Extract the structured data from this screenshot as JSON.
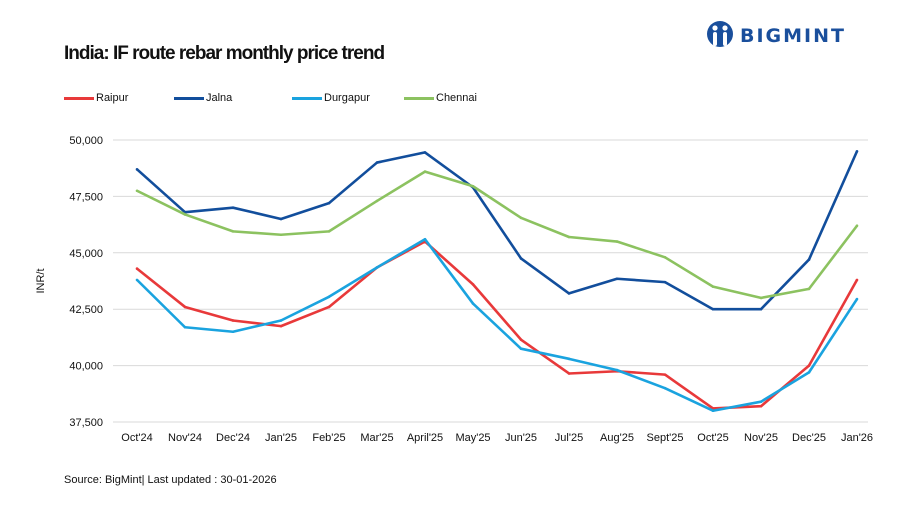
{
  "logo": {
    "text": "BIGMINT",
    "color": "#1a4f9c"
  },
  "source": "Source: BigMint| Last updated : 30-01-2026",
  "chart_data": {
    "type": "line",
    "title": "India: IF route rebar monthly price trend",
    "xlabel": "",
    "ylabel": "INR/t",
    "ylim": [
      37500,
      50000
    ],
    "yticks": [
      37500,
      40000,
      42500,
      45000,
      47500,
      50000
    ],
    "ytick_labels": [
      "37,500",
      "40,000",
      "42,500",
      "45,000",
      "47,500",
      "50,000"
    ],
    "grid": true,
    "legend_position": "top-left",
    "categories": [
      "Oct'24",
      "Nov'24",
      "Dec'24",
      "Jan'25",
      "Feb'25",
      "Mar'25",
      "April'25",
      "May'25",
      "Jun'25",
      "Jul'25",
      "Aug'25",
      "Sept'25",
      "Oct'25",
      "Nov'25",
      "Dec'25",
      "Jan'26"
    ],
    "series": [
      {
        "name": "Raipur",
        "color": "#e8393a",
        "values": [
          44300,
          42600,
          42000,
          41750,
          42600,
          44350,
          45500,
          43600,
          41150,
          39650,
          39750,
          39600,
          38100,
          38200,
          40000,
          43800
        ]
      },
      {
        "name": "Jalna",
        "color": "#124e9c",
        "values": [
          48700,
          46800,
          47000,
          46500,
          47200,
          49000,
          49450,
          47900,
          44750,
          43200,
          43850,
          43700,
          42500,
          42500,
          44700,
          49500
        ]
      },
      {
        "name": "Durgapur",
        "color": "#1aa3df",
        "values": [
          43800,
          41700,
          41500,
          42000,
          43050,
          44350,
          45600,
          42750,
          40750,
          40300,
          39800,
          39000,
          38000,
          38400,
          39700,
          42950
        ]
      },
      {
        "name": "Chennai",
        "color": "#8cc260",
        "values": [
          47750,
          46700,
          45950,
          45800,
          45950,
          47300,
          48600,
          47950,
          46550,
          45700,
          45500,
          44800,
          43500,
          43000,
          43400,
          46200
        ]
      }
    ]
  }
}
